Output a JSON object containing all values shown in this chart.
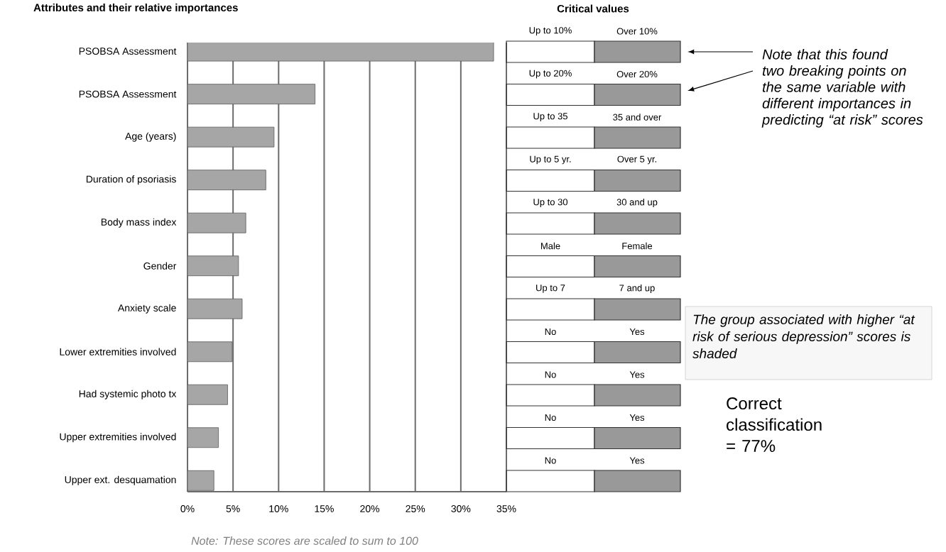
{
  "chart_data": {
    "type": "bar",
    "orientation": "horizontal",
    "title": "Attributes and their relative importances",
    "categories": [
      "PSOBSA Assessment",
      "PSOBSA Assessment",
      "Age (years)",
      "Duration of psoriasis",
      "Body mass index",
      "Gender",
      "Anxiety scale",
      "Lower extremities involved",
      "Had systemic photo tx",
      "Upper extremities involved",
      "Upper ext. desquamation"
    ],
    "values": [
      33.6,
      14.0,
      9.5,
      8.6,
      6.4,
      5.6,
      6.0,
      4.9,
      4.4,
      3.4,
      2.9
    ],
    "color": "#a6a6a6",
    "xlim": [
      0,
      35
    ],
    "xticks": [
      {
        "value": 0,
        "label": "0%"
      },
      {
        "value": 5,
        "label": "5%"
      },
      {
        "value": 10,
        "label": "10%"
      },
      {
        "value": 15,
        "label": "15%"
      },
      {
        "value": 20,
        "label": "20%"
      },
      {
        "value": 25,
        "label": "25%"
      },
      {
        "value": 30,
        "label": "30%"
      },
      {
        "value": 35,
        "label": "35%"
      }
    ],
    "grid": "x",
    "annotations": [
      "Critical values",
      "Up to 10%",
      "Over 10%",
      "Up to 20%",
      "Over 20%",
      "Up to 35",
      "35 and over",
      "Up to 5 yr.",
      "Over 5 yr.",
      "Up to 30",
      "30 and up",
      "Male",
      "Female",
      "Up to 7",
      "7 and up",
      "No",
      "Yes",
      "No",
      "Yes",
      "No",
      "Yes",
      "No",
      "Yes",
      "Note that this found two breaking points on the same variable with different importances in predicting “at risk” scores",
      "The group associated with higher “at risk of serious depression” scores is shaded",
      "Correct classification = 77%",
      "Note: These scores are scaled to sum to 100"
    ]
  }
}
